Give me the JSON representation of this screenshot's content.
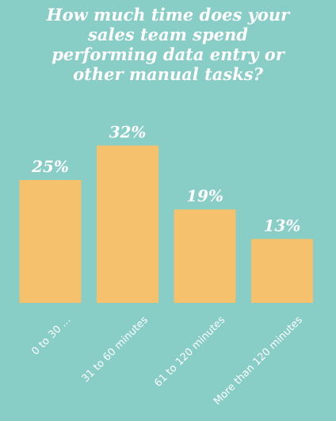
{
  "chart_data": {
    "type": "bar",
    "title_lines": [
      "How much time does your",
      "sales team spend",
      "performing data entry or",
      "other manual tasks?"
    ],
    "categories": [
      "0 to 30 ...",
      "31 to 60 minutes",
      "61 to 120 minutes",
      "More than 120 minutes"
    ],
    "values": [
      25,
      32,
      19,
      13
    ],
    "data_labels": [
      "25%",
      "32%",
      "19%",
      "13%"
    ],
    "xlabel": "",
    "ylabel": "",
    "ylim": [
      0,
      40
    ],
    "grid": false,
    "legend": "none",
    "colors": {
      "background": "#88cdc6",
      "bar": "#f5c16c",
      "text": "#ffffff"
    }
  }
}
